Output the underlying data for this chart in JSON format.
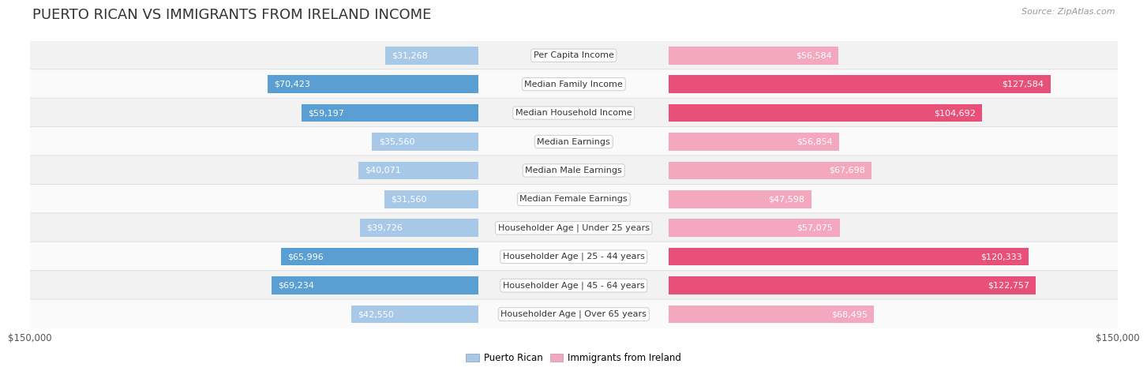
{
  "title": "PUERTO RICAN VS IMMIGRANTS FROM IRELAND INCOME",
  "source": "Source: ZipAtlas.com",
  "categories": [
    "Per Capita Income",
    "Median Family Income",
    "Median Household Income",
    "Median Earnings",
    "Median Male Earnings",
    "Median Female Earnings",
    "Householder Age | Under 25 years",
    "Householder Age | 25 - 44 years",
    "Householder Age | 45 - 64 years",
    "Householder Age | Over 65 years"
  ],
  "puerto_rican": [
    31268,
    70423,
    59197,
    35560,
    40071,
    31560,
    39726,
    65996,
    69234,
    42550
  ],
  "ireland": [
    56584,
    127584,
    104692,
    56854,
    67698,
    47598,
    57075,
    120333,
    122757,
    68495
  ],
  "pr_color_light": "#a8c8e8",
  "pr_color_dark": "#5a9fd4",
  "ir_color_light": "#f4a8c0",
  "ir_color_dark": "#e8507a",
  "pr_dark_threshold": 50000,
  "ir_dark_threshold": 80000,
  "max_value": 150000,
  "row_bg_even": "#f2f2f2",
  "row_bg_odd": "#fafafa",
  "row_border": "#dddddd",
  "title_fontsize": 13,
  "source_fontsize": 8,
  "label_fontsize": 8,
  "category_fontsize": 8,
  "axis_label": "$150,000",
  "legend_pr": "Puerto Rican",
  "legend_ir": "Immigrants from Ireland",
  "pr_inside_threshold": 0.15,
  "ir_inside_threshold": 0.2
}
